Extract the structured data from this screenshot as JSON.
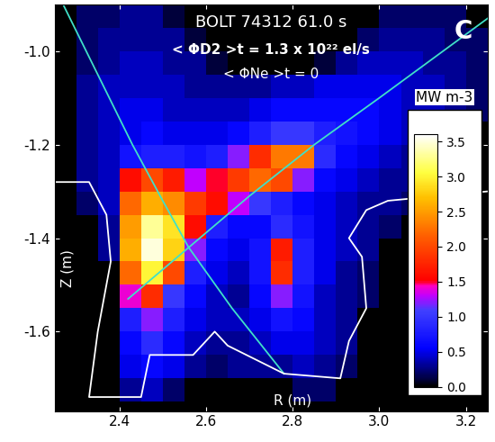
{
  "chart_data": {
    "type": "heatmap",
    "annotations": [
      "BOLT 74312 61.0 s",
      "< ΦD2 >t = 1.3 x 10²² el/s",
      "< ΦNe >t = 0",
      "C"
    ],
    "xlabel": "R (m)",
    "ylabel": "Z (m)",
    "xlim": [
      2.25,
      3.25
    ],
    "ylim": [
      -1.77,
      -0.9
    ],
    "xticks": [
      {
        "value": 2.4,
        "label": "2.4"
      },
      {
        "value": 2.6,
        "label": "2.6"
      },
      {
        "value": 2.8,
        "label": "2.8"
      },
      {
        "value": 3.0,
        "label": "3.0"
      },
      {
        "value": 3.2,
        "label": "3.2"
      }
    ],
    "yticks": [
      {
        "value": -1.6,
        "label": "-1.6"
      },
      {
        "value": -1.4,
        "label": "-1.4"
      },
      {
        "value": -1.2,
        "label": "-1.2"
      },
      {
        "value": -1.0,
        "label": "-1.0"
      }
    ],
    "x_edges": [
      2.25,
      2.3,
      2.35,
      2.4,
      2.45,
      2.5,
      2.55,
      2.6,
      2.65,
      2.7,
      2.75,
      2.8,
      2.85,
      2.9,
      2.95,
      3.0,
      3.05,
      3.1,
      3.15,
      3.2,
      3.25
    ],
    "y_edges": [
      -1.8,
      -1.75,
      -1.7,
      -1.65,
      -1.6,
      -1.55,
      -1.5,
      -1.45,
      -1.4,
      -1.35,
      -1.3,
      -1.25,
      -1.2,
      -1.15,
      -1.1,
      -1.05,
      -1.0,
      -0.95,
      -0.9
    ],
    "cells": [
      [
        0,
        0,
        0,
        0,
        0,
        0,
        0,
        0,
        0,
        0,
        0,
        0,
        0,
        0,
        0,
        0,
        0,
        0,
        0,
        0
      ],
      [
        0,
        0,
        0,
        0.3,
        0.4,
        0.2,
        0,
        0,
        0,
        0,
        0,
        0.2,
        0.2,
        0,
        0,
        0,
        0,
        0,
        0,
        0
      ],
      [
        0,
        0,
        0,
        0.5,
        0.6,
        0.5,
        0.3,
        0.2,
        0.3,
        0.3,
        0.3,
        0.4,
        0.3,
        0.2,
        0,
        0,
        0,
        0,
        0,
        0
      ],
      [
        0,
        0,
        0,
        0.6,
        0.9,
        0.6,
        0.4,
        0.3,
        0.3,
        0.4,
        0.5,
        0.5,
        0.4,
        0.3,
        0,
        0,
        0,
        0,
        0,
        0
      ],
      [
        0,
        0,
        0,
        0.8,
        1.2,
        0.8,
        0.5,
        0.4,
        0.4,
        0.5,
        0.7,
        0.6,
        0.4,
        0.3,
        0,
        0,
        0,
        0,
        0,
        0
      ],
      [
        0,
        0,
        0,
        1.4,
        1.8,
        1.0,
        0.6,
        0.4,
        0.3,
        0.6,
        1.2,
        0.7,
        0.4,
        0.3,
        0.2,
        0,
        0,
        0,
        0,
        0
      ],
      [
        0,
        0,
        0,
        2.2,
        3.0,
        2.0,
        0.8,
        0.5,
        0.4,
        0.7,
        1.8,
        0.8,
        0.5,
        0.3,
        0.2,
        0,
        0,
        0,
        0,
        0
      ],
      [
        0,
        0,
        0.3,
        2.6,
        3.5,
        2.8,
        1.2,
        0.6,
        0.5,
        0.7,
        1.7,
        0.8,
        0.5,
        0.4,
        0.3,
        0,
        0,
        0,
        0,
        0
      ],
      [
        0,
        0,
        0.3,
        2.5,
        3.3,
        2.9,
        1.6,
        0.8,
        0.6,
        0.6,
        0.9,
        0.7,
        0.5,
        0.4,
        0.3,
        0.2,
        0,
        0,
        0,
        0
      ],
      [
        0,
        0.2,
        0.4,
        2.2,
        2.6,
        2.4,
        1.9,
        1.6,
        1.3,
        1.0,
        0.8,
        0.6,
        0.5,
        0.4,
        0.3,
        0.3,
        0.2,
        0,
        0,
        0
      ],
      [
        0,
        0.3,
        0.4,
        1.6,
        2.0,
        1.7,
        1.3,
        1.5,
        1.9,
        2.2,
        2.0,
        1.2,
        0.6,
        0.5,
        0.4,
        0.3,
        0.3,
        0.2,
        0,
        0
      ],
      [
        0,
        0.3,
        0.4,
        0.7,
        0.8,
        0.8,
        0.7,
        0.8,
        1.2,
        1.8,
        2.3,
        2.3,
        0.9,
        0.6,
        0.5,
        0.4,
        0.3,
        0.3,
        0.2,
        0
      ],
      [
        0,
        0.3,
        0.4,
        0.5,
        0.6,
        0.5,
        0.5,
        0.5,
        0.6,
        0.8,
        1.0,
        1.0,
        0.8,
        0.7,
        0.6,
        0.5,
        0.4,
        0.3,
        0.3,
        0
      ],
      [
        0,
        0.3,
        0.4,
        0.5,
        0.5,
        0.4,
        0.4,
        0.4,
        0.4,
        0.5,
        0.6,
        0.6,
        0.6,
        0.6,
        0.6,
        0.5,
        0.4,
        0.4,
        0.3,
        0.2
      ],
      [
        0,
        0.3,
        0.4,
        0.4,
        0.4,
        0.4,
        0.3,
        0.3,
        0.3,
        0.3,
        0.4,
        0.4,
        0.5,
        0.5,
        0.5,
        0.5,
        0.4,
        0.4,
        0.3,
        0.2
      ],
      [
        0,
        0.2,
        0.3,
        0.4,
        0.4,
        0.3,
        0.3,
        0.1,
        0,
        0,
        0,
        0,
        0.1,
        0.3,
        0.4,
        0.4,
        0.4,
        0.3,
        0.3,
        0.2
      ],
      [
        0,
        0.2,
        0.3,
        0.3,
        0.3,
        0.3,
        0.1,
        0,
        0,
        0,
        0,
        0,
        0,
        0,
        0.2,
        0.3,
        0.3,
        0.3,
        0.2,
        0.2
      ],
      [
        0,
        0.2,
        0.2,
        0.3,
        0.3,
        0.1,
        0,
        0,
        0,
        0,
        0,
        0,
        0,
        0,
        0,
        0.2,
        0.2,
        0.2,
        0.2,
        0
      ]
    ],
    "colorbar": {
      "label": "MW m-3",
      "range": [
        0,
        3.6
      ],
      "ticks": [
        {
          "value": 0,
          "label": "0.0"
        },
        {
          "value": 0.5,
          "label": "0.5"
        },
        {
          "value": 1.0,
          "label": "1.0"
        },
        {
          "value": 1.5,
          "label": "1.5"
        },
        {
          "value": 2.0,
          "label": "2.0"
        },
        {
          "value": 2.5,
          "label": "2.5"
        },
        {
          "value": 3.0,
          "label": "3.0"
        },
        {
          "value": 3.5,
          "label": "3.5"
        }
      ]
    },
    "lines": [
      {
        "color": "#40e0c8",
        "x": [
          2.27,
          2.35,
          2.43,
          2.5,
          2.56,
          2.66,
          2.78
        ],
        "y": [
          -0.9,
          -1.05,
          -1.2,
          -1.32,
          -1.42,
          -1.55,
          -1.69
        ]
      },
      {
        "color": "#40e0c8",
        "x": [
          2.42,
          2.56,
          2.7,
          2.85,
          3.0,
          3.25
        ],
        "y": [
          -1.53,
          -1.42,
          -1.31,
          -1.2,
          -1.1,
          -0.93
        ]
      },
      {
        "color": "#ffffff",
        "x": [
          2.25,
          2.33,
          2.37,
          2.38,
          2.35,
          2.33,
          2.45,
          2.47,
          2.57,
          2.62,
          2.65,
          2.78,
          2.91,
          2.93,
          2.97,
          2.96,
          2.93,
          2.97,
          3.02,
          3.25
        ],
        "y": [
          -1.28,
          -1.28,
          -1.35,
          -1.45,
          -1.6,
          -1.74,
          -1.74,
          -1.65,
          -1.65,
          -1.6,
          -1.63,
          -1.69,
          -1.7,
          -1.62,
          -1.55,
          -1.44,
          -1.4,
          -1.34,
          -1.32,
          -1.3
        ]
      }
    ]
  }
}
